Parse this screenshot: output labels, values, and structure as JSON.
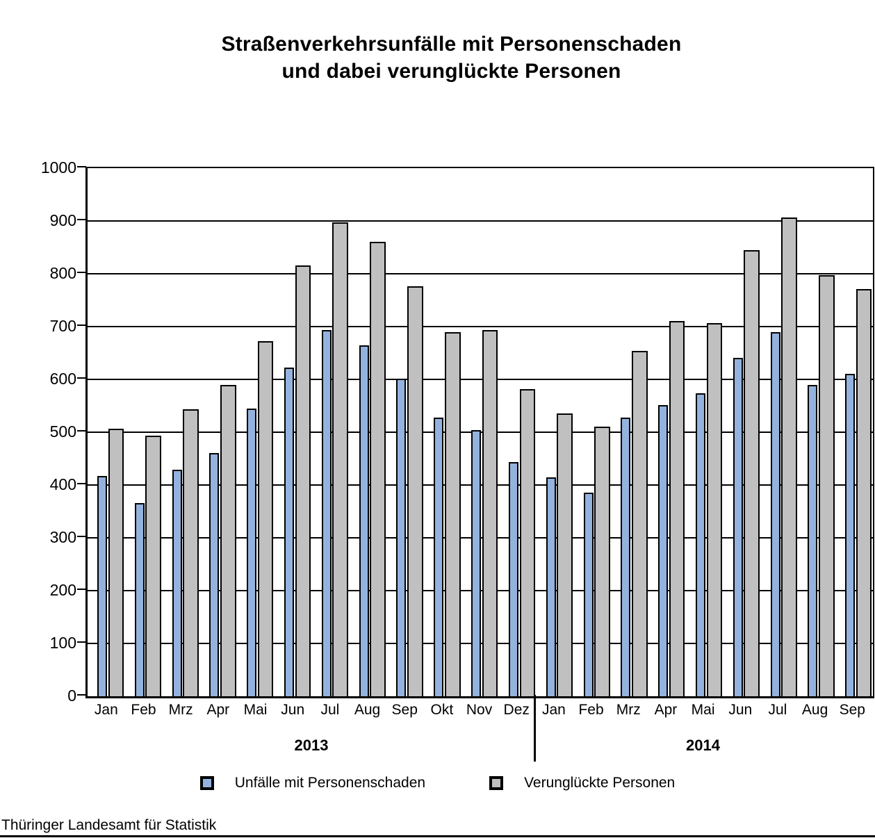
{
  "title": {
    "line1": "Straßenverkehrsunfälle mit Personenschaden",
    "line2": "und dabei verunglückte Personen"
  },
  "chart_data": {
    "type": "bar",
    "categories": [
      "Jan",
      "Feb",
      "Mrz",
      "Apr",
      "Mai",
      "Jun",
      "Jul",
      "Aug",
      "Sep",
      "Okt",
      "Nov",
      "Dez",
      "Jan",
      "Feb",
      "Mrz",
      "Apr",
      "Mai",
      "Jun",
      "Jul",
      "Aug",
      "Sep"
    ],
    "series": [
      {
        "name": "Unfälle mit Personenschaden",
        "color": "#93B3DE",
        "values": [
          417,
          366,
          429,
          461,
          545,
          622,
          694,
          665,
          601,
          528,
          504,
          444,
          414,
          385,
          527,
          551,
          574,
          641,
          689,
          589,
          611
        ]
      },
      {
        "name": "Verunglückte Personen",
        "color": "#C0C0C0",
        "values": [
          507,
          493,
          543,
          590,
          672,
          816,
          897,
          860,
          776,
          689,
          694,
          581,
          536,
          510,
          654,
          711,
          706,
          845,
          906,
          797,
          771
        ]
      }
    ],
    "year_groups": [
      {
        "label": "2013",
        "months": 12
      },
      {
        "label": "2014",
        "months": 9
      }
    ],
    "ylim": [
      0,
      1000
    ],
    "yticks": [
      0,
      100,
      200,
      300,
      400,
      500,
      600,
      700,
      800,
      900,
      1000
    ],
    "grid": "horizontal",
    "legend_position": "bottom"
  },
  "footer": {
    "source": "Thüringer Landesamt für Statistik"
  }
}
